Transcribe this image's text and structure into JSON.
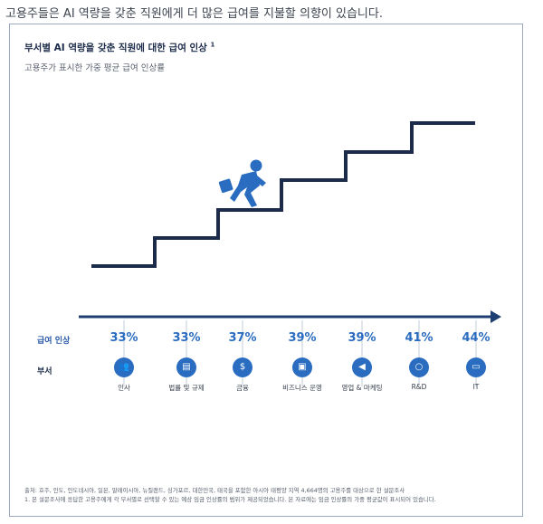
{
  "headline": "고용주들은 AI 역량을 갖춘 직원에게 더 많은 급여를 지불할 의향이 있습니다.",
  "card": {
    "title": "부서별 AI 역량을 갖춘 직원에 대한 급여 인상",
    "title_footnote_mark": "1",
    "subtitle": "고용주가 표시한 가중 평균 급여 인상률",
    "row_label_pay": "급여 인상",
    "row_label_dept": "부서",
    "footnote_source": "출처: 호주, 인도, 인도네시아, 일본, 말레이시아, 뉴질랜드, 싱가포르, 대한민국, 태국을 포함한 아시아 태평양 지역 4,664명의 고용주를 대상으로 한 설문조사",
    "footnote_1": "1. 본 설문조사에 응답한 고용주에게 각 부서별로 선택할 수 있는 예상 임금 인상률의 범위가 제공되었습니다. 본 자료에는 임금 인상률의 가중 평균값이 표시되어 있습니다."
  },
  "chart_data": {
    "type": "table",
    "title": "부서별 AI 역량을 갖춘 직원에 대한 급여 인상",
    "subtitle": "고용주가 표시한 가중 평균 급여 인상률",
    "categories": [
      "인사",
      "법률 및 규제",
      "금융",
      "비즈니스 운영",
      "영업 & 마케팅",
      "R&D",
      "IT"
    ],
    "values": [
      33,
      33,
      37,
      39,
      39,
      41,
      44
    ],
    "value_labels": [
      "33%",
      "33%",
      "37%",
      "39%",
      "39%",
      "41%",
      "44%"
    ],
    "unit": "%"
  },
  "icons": [
    "people-icon",
    "document-icon",
    "money-hand-icon",
    "briefcase-icon",
    "megaphone-icon",
    "magnifier-icon",
    "computer-icon"
  ],
  "colors": {
    "stair": "#1c2b4a",
    "arrow": "#1f3f73",
    "accent": "#2a6cc0",
    "runner": "#2a6cc0"
  }
}
